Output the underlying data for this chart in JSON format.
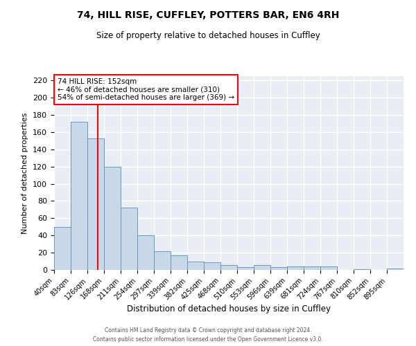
{
  "title": "74, HILL RISE, CUFFLEY, POTTERS BAR, EN6 4RH",
  "subtitle": "Size of property relative to detached houses in Cuffley",
  "xlabel": "Distribution of detached houses by size in Cuffley",
  "ylabel": "Number of detached properties",
  "bin_labels": [
    "40sqm",
    "83sqm",
    "126sqm",
    "168sqm",
    "211sqm",
    "254sqm",
    "297sqm",
    "339sqm",
    "382sqm",
    "425sqm",
    "468sqm",
    "510sqm",
    "553sqm",
    "596sqm",
    "639sqm",
    "681sqm",
    "724sqm",
    "767sqm",
    "810sqm",
    "852sqm",
    "895sqm"
  ],
  "bin_edges": [
    40,
    83,
    126,
    168,
    211,
    254,
    297,
    339,
    382,
    425,
    468,
    510,
    553,
    596,
    639,
    681,
    724,
    767,
    810,
    852,
    895
  ],
  "counts": [
    50,
    172,
    153,
    120,
    72,
    40,
    22,
    17,
    10,
    9,
    6,
    3,
    6,
    3,
    4,
    4,
    4,
    0,
    1,
    0,
    2
  ],
  "bar_color": "#c8d8e8",
  "bar_edge_color": "#6699bb",
  "bg_color": "#e8eef4",
  "grid_color": "#ffffff",
  "vline_x": 152,
  "vline_color": "red",
  "annotation_title": "74 HILL RISE: 152sqm",
  "annotation_line1": "← 46% of detached houses are smaller (310)",
  "annotation_line2": "54% of semi-detached houses are larger (369) →",
  "annotation_box_edge": "red",
  "annotation_bg": "white",
  "ylim": [
    0,
    225
  ],
  "yticks": [
    0,
    20,
    40,
    60,
    80,
    100,
    120,
    140,
    160,
    180,
    200,
    220
  ],
  "footer1": "Contains HM Land Registry data © Crown copyright and database right 2024.",
  "footer2": "Contains public sector information licensed under the Open Government Licence v3.0."
}
